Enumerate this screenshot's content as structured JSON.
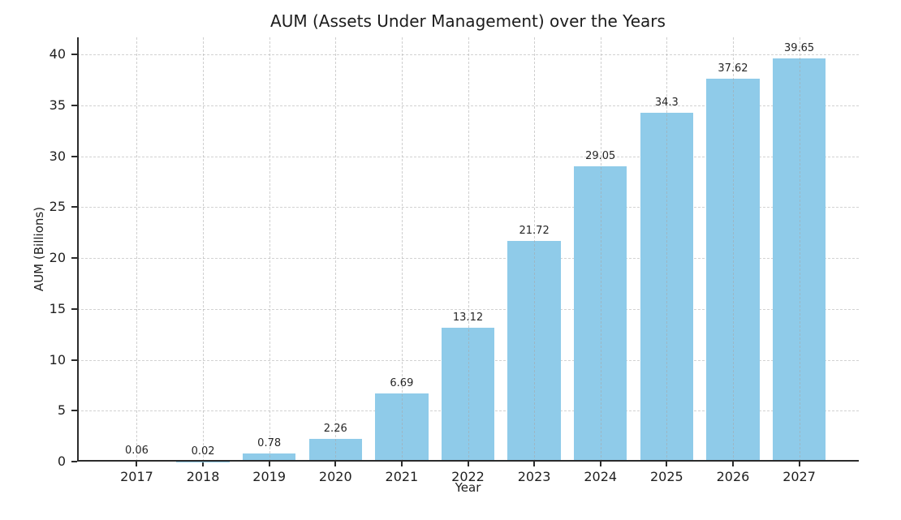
{
  "chart_data": {
    "type": "bar",
    "title": "AUM (Assets Under Management) over the Years",
    "xlabel": "Year",
    "ylabel": "AUM (Billions)",
    "categories": [
      "2017",
      "2018",
      "2019",
      "2020",
      "2021",
      "2022",
      "2023",
      "2024",
      "2025",
      "2026",
      "2027"
    ],
    "values": [
      0.06,
      0.02,
      0.78,
      2.26,
      6.69,
      13.12,
      21.72,
      29.05,
      34.3,
      37.62,
      39.65
    ],
    "bar_labels": [
      "0.06",
      "0.02",
      "0.78",
      "2.26",
      "6.69",
      "13.12",
      "21.72",
      "29.05",
      "34.3",
      "37.62",
      "39.65"
    ],
    "yticks": [
      0,
      5,
      10,
      15,
      20,
      25,
      30,
      35,
      40
    ],
    "ylim": [
      0,
      41.7
    ],
    "bar_rel_width": 0.8,
    "x_margin": 0.9,
    "grid": "dashed",
    "legend": "none",
    "bar_color": "#8fcbe9",
    "grid_color": "#d2d2d2",
    "spine_color": "#2b2b2b",
    "text_color": "#1f1f1f"
  }
}
